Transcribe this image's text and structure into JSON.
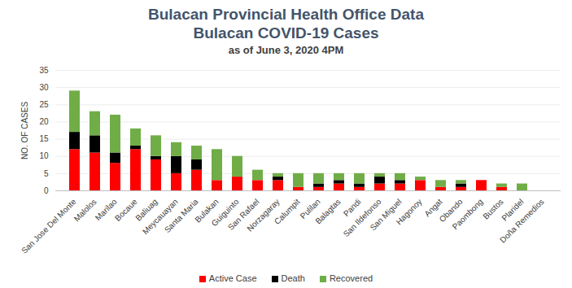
{
  "chart_data": {
    "type": "bar",
    "title": [
      "Bulacan Provincial Health Office Data",
      "Bulacan COVID-19 Cases"
    ],
    "subtitle": "as of June 3, 2020 4PM",
    "y_label": "NO. OF CASES",
    "categories": [
      "San Jose Del Monte",
      "Malolos",
      "Marilao",
      "Bocaue",
      "Baliuag",
      "Meycauayan",
      "Santa Maria",
      "Bulakan",
      "Guiguinto",
      "San Rafael",
      "Norzagaray",
      "Calumpit",
      "Pulilan",
      "Balagtas",
      "Pandi",
      "San Ildefonso",
      "San Miguel",
      "Hagonoy",
      "Angat",
      "Obando",
      "Paombong",
      "Bustos",
      "Plaridel",
      "Doña Remedios"
    ],
    "series": [
      {
        "name": "Active Case",
        "color": "#ff0000",
        "values": [
          12,
          11,
          8,
          12,
          9,
          5,
          6,
          3,
          4,
          3,
          3,
          1,
          1,
          2,
          1,
          2,
          2,
          3,
          1,
          1,
          3,
          1,
          0,
          0
        ]
      },
      {
        "name": "Death",
        "color": "#000000",
        "values": [
          5,
          5,
          3,
          1,
          1,
          5,
          3,
          0,
          0,
          0,
          1,
          0,
          1,
          1,
          1,
          2,
          1,
          0,
          0,
          1,
          0,
          0,
          0,
          0
        ]
      },
      {
        "name": "Recovered",
        "color": "#70ad47",
        "values": [
          12,
          7,
          11,
          5,
          6,
          4,
          4,
          9,
          6,
          3,
          1,
          4,
          3,
          2,
          3,
          1,
          2,
          1,
          2,
          1,
          0,
          1,
          2,
          0
        ]
      }
    ],
    "ylim": [
      0,
      35
    ],
    "yticks": [
      0,
      5,
      10,
      15,
      20,
      25,
      30,
      35
    ],
    "stacked": true,
    "grid": true,
    "legend": "bottom"
  }
}
